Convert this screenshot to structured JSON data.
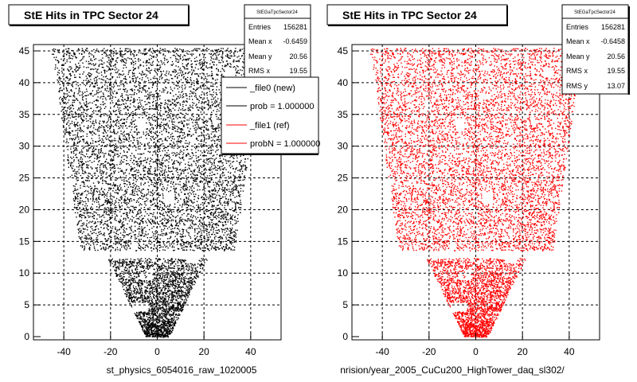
{
  "chart_data": [
    {
      "type": "scatter",
      "title": "StE Hits in TPC Sector 24",
      "xlabel": "st_physics_6054016_raw_1020005",
      "ylabel": "",
      "xlim": [
        -53,
        53
      ],
      "ylim": [
        -0.5,
        46
      ],
      "x_ticks": [
        -40,
        -20,
        0,
        20,
        40
      ],
      "y_ticks": [
        0,
        5,
        10,
        15,
        20,
        25,
        30,
        35,
        40,
        45
      ],
      "grid": true,
      "color": "#000000",
      "stats": {
        "name": "StEGaTpcSector24",
        "rows": [
          {
            "label": "Entries",
            "value": "156281"
          },
          {
            "label": "Mean x",
            "value": "-0.6459"
          },
          {
            "label": "Mean y",
            "value": "20.56"
          },
          {
            "label": "RMS x",
            "value": "19.55"
          }
        ]
      },
      "legend": [
        {
          "label": "_file0 (new)",
          "color": "#000000"
        },
        {
          "label": "prob = 1.000000",
          "color": "#000000"
        },
        {
          "label": "_file1 (ref)",
          "color": "#ff0000"
        },
        {
          "label": "probN = 1.000000",
          "color": "#ff0000"
        }
      ]
    },
    {
      "type": "scatter",
      "title": "StE Hits in TPC Sector 24",
      "xlabel": "nrision/year_2005_CuCu200_HighTower_daq_sl302/",
      "ylabel": "",
      "xlim": [
        -53,
        53
      ],
      "ylim": [
        -0.5,
        46
      ],
      "x_ticks": [
        -40,
        -20,
        0,
        20,
        40
      ],
      "y_ticks": [
        0,
        5,
        10,
        15,
        20,
        25,
        30,
        35,
        40,
        45
      ],
      "grid": true,
      "color": "#ff0000",
      "stats": {
        "name": "StEGaTpcSector24",
        "rows": [
          {
            "label": "Entries",
            "value": "156281"
          },
          {
            "label": "Mean x",
            "value": "-0.6458"
          },
          {
            "label": "Mean y",
            "value": "20.56"
          },
          {
            "label": "RMS x",
            "value": "19.55"
          },
          {
            "label": "RMS y",
            "value": "13.07"
          }
        ]
      }
    }
  ]
}
